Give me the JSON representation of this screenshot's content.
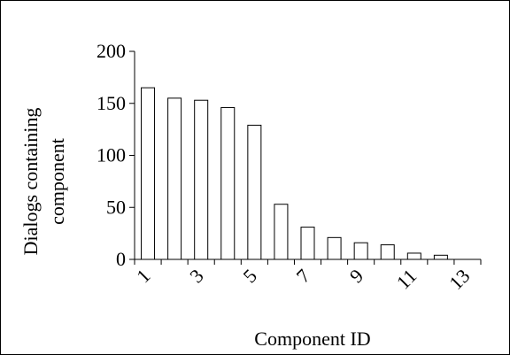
{
  "chart_data": {
    "type": "bar",
    "title": "",
    "xlabel": "Component ID",
    "ylabel_lines": [
      "Dialogs containing",
      "component"
    ],
    "categories": [
      "1",
      "2",
      "3",
      "4",
      "5",
      "6",
      "7",
      "8",
      "9",
      "10",
      "11",
      "12",
      "13"
    ],
    "x_tick_labels": [
      "1",
      "3",
      "5",
      "7",
      "9",
      "11",
      "13"
    ],
    "values": [
      165,
      155,
      153,
      146,
      129,
      53,
      31,
      21,
      16,
      14,
      6,
      4,
      0
    ],
    "ylim": [
      0,
      200
    ],
    "y_ticks": [
      0,
      50,
      100,
      150,
      200
    ],
    "grid": false,
    "legend": "none",
    "colors": {
      "bar_fill": "#ffffff",
      "bar_stroke": "#000000",
      "axis": "#000000"
    }
  }
}
